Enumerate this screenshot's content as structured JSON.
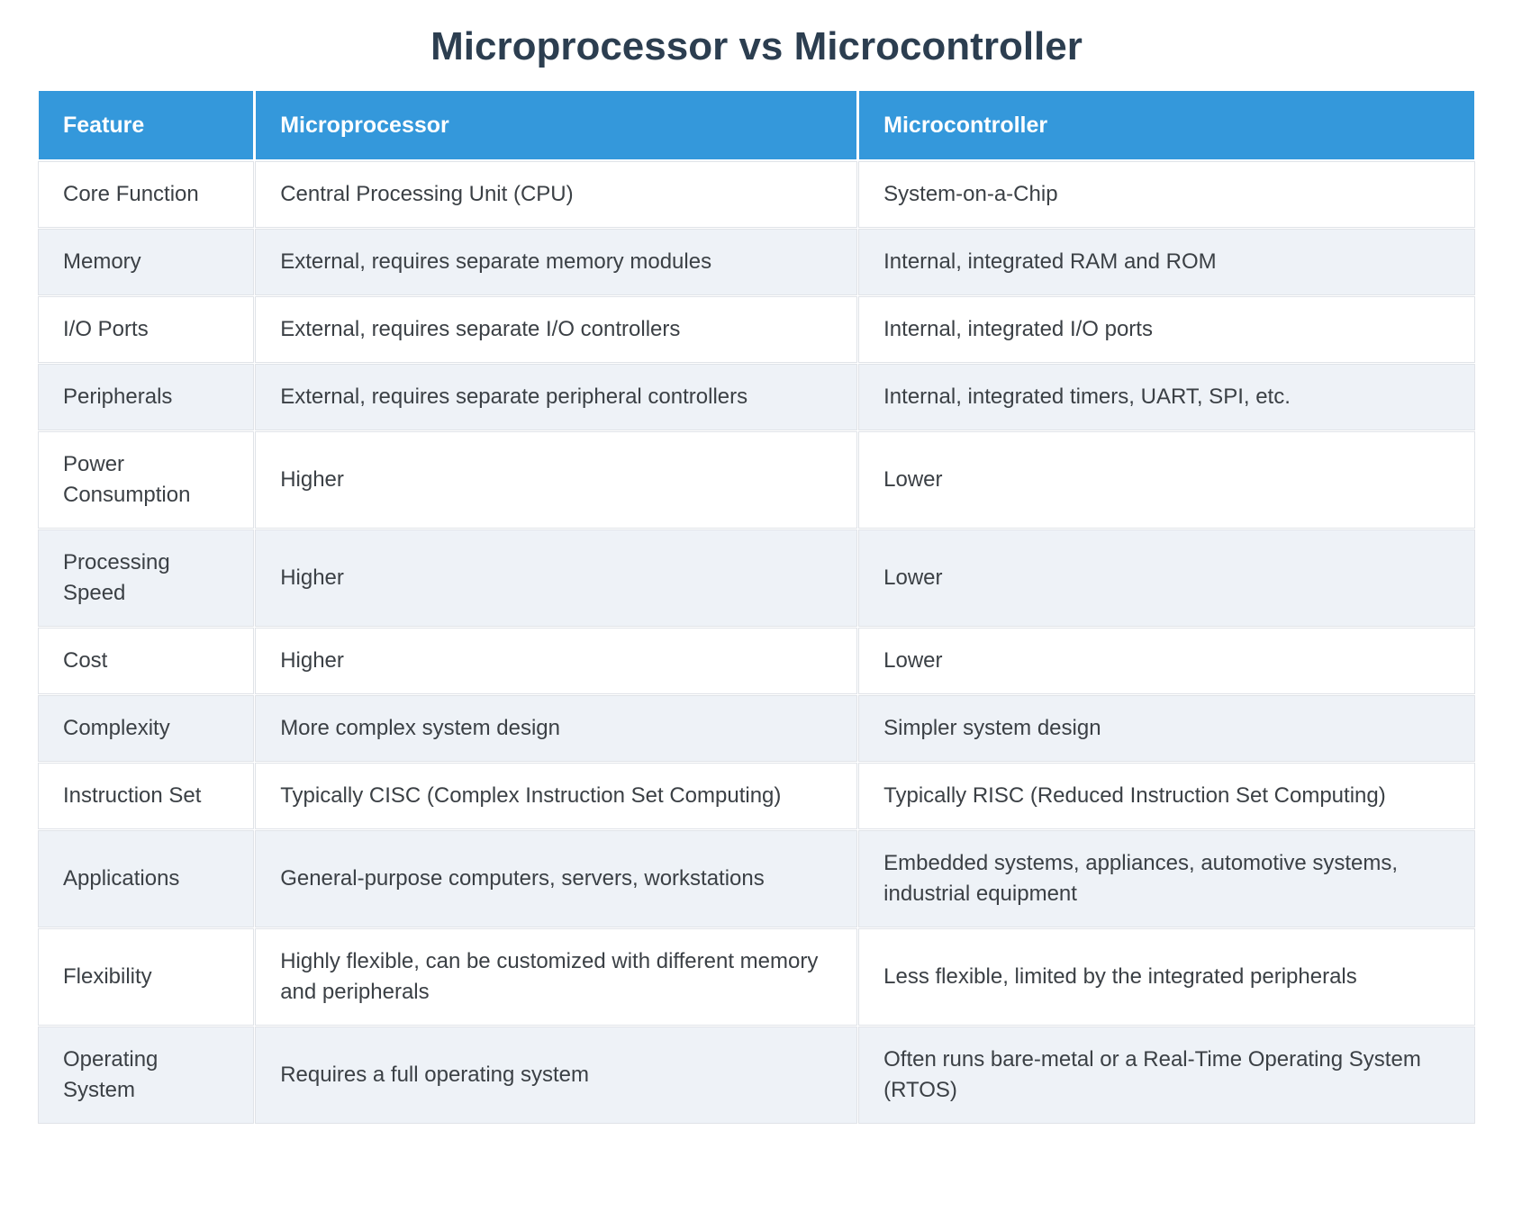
{
  "title": "Microprocessor vs Microcontroller",
  "colors": {
    "header_bg": "#3498db",
    "header_text": "#ffffff",
    "title_text": "#2c3e50",
    "body_text": "#3b4045",
    "row_bg": "#ffffff",
    "row_alt_bg": "#eef2f7",
    "grid_hairline": "#e0e3e8"
  },
  "table": {
    "columns": [
      "Feature",
      "Microprocessor",
      "Microcontroller"
    ],
    "rows": [
      {
        "feature": "Core Function",
        "microprocessor": "Central Processing Unit (CPU)",
        "microcontroller": "System-on-a-Chip"
      },
      {
        "feature": "Memory",
        "microprocessor": "External, requires separate memory modules",
        "microcontroller": "Internal, integrated RAM and ROM"
      },
      {
        "feature": "I/O Ports",
        "microprocessor": "External, requires separate I/O controllers",
        "microcontroller": "Internal, integrated I/O ports"
      },
      {
        "feature": "Peripherals",
        "microprocessor": "External, requires separate peripheral controllers",
        "microcontroller": "Internal, integrated timers, UART, SPI, etc."
      },
      {
        "feature": "Power Consumption",
        "microprocessor": "Higher",
        "microcontroller": "Lower"
      },
      {
        "feature": "Processing Speed",
        "microprocessor": "Higher",
        "microcontroller": "Lower"
      },
      {
        "feature": "Cost",
        "microprocessor": "Higher",
        "microcontroller": "Lower"
      },
      {
        "feature": "Complexity",
        "microprocessor": "More complex system design",
        "microcontroller": "Simpler system design"
      },
      {
        "feature": "Instruction Set",
        "microprocessor": "Typically CISC (Complex Instruction Set Computing)",
        "microcontroller": "Typically RISC (Reduced Instruction Set Computing)"
      },
      {
        "feature": "Applications",
        "microprocessor": "General-purpose computers, servers, workstations",
        "microcontroller": "Embedded systems, appliances, automotive systems, industrial equipment"
      },
      {
        "feature": "Flexibility",
        "microprocessor": "Highly flexible, can be customized with different memory and peripherals",
        "microcontroller": "Less flexible, limited by the integrated peripherals"
      },
      {
        "feature": "Operating System",
        "microprocessor": "Requires a full operating system",
        "microcontroller": "Often runs bare-metal or a Real-Time Operating System (RTOS)"
      }
    ]
  }
}
